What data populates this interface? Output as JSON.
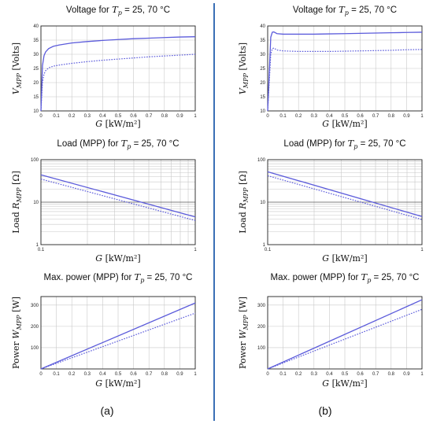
{
  "colors": {
    "series": "#5b5bdb",
    "divider": "#3a6fb5",
    "grid": "#c8c8c8"
  },
  "captions": {
    "left": "(a)",
    "right": "(b)"
  },
  "chart_data": [
    {
      "id": "a-voltage",
      "type": "line",
      "panel": "a",
      "title_pre": "Voltage for ",
      "title_var": "T",
      "title_sub": "p",
      "title_post": " = 25, 70 °C",
      "ylabel_var": "V",
      "ylabel_sub": "MPP",
      "ylabel_post": " [Volts]",
      "xlabel_var": "G",
      "xlabel_post": " [kW/m²]",
      "xscale": "linear",
      "yscale": "linear",
      "xlim": [
        0,
        1
      ],
      "ylim": [
        10,
        40
      ],
      "grid": true,
      "xticks": [
        "0",
        "0.1",
        "0.2",
        "0.3",
        "0.4",
        "0.5",
        "0.6",
        "0.7",
        "0.8",
        "0.9",
        "1"
      ],
      "yticks": [
        "10",
        "15",
        "20",
        "25",
        "30",
        "35",
        "40"
      ],
      "series": [
        {
          "style": "solid",
          "x": [
            0,
            0.01,
            0.02,
            0.03,
            0.05,
            0.08,
            0.12,
            0.2,
            0.3,
            0.4,
            0.5,
            0.6,
            0.7,
            0.8,
            0.9,
            1.0
          ],
          "y": [
            10,
            26,
            29.5,
            30.8,
            32,
            32.8,
            33.3,
            34,
            34.5,
            34.9,
            35.2,
            35.5,
            35.7,
            35.9,
            36.1,
            36.2
          ]
        },
        {
          "style": "dotted",
          "x": [
            0,
            0.01,
            0.02,
            0.03,
            0.05,
            0.08,
            0.12,
            0.2,
            0.3,
            0.4,
            0.5,
            0.6,
            0.7,
            0.8,
            0.9,
            1.0
          ],
          "y": [
            10,
            20,
            23,
            24.2,
            25.2,
            25.8,
            26.2,
            26.8,
            27.4,
            27.9,
            28.3,
            28.7,
            29.1,
            29.4,
            29.7,
            30
          ]
        }
      ]
    },
    {
      "id": "b-voltage",
      "type": "line",
      "panel": "b",
      "title_pre": "Voltage for ",
      "title_var": "T",
      "title_sub": "p",
      "title_post": " = 25, 70 °C",
      "ylabel_var": "V",
      "ylabel_sub": "MPP",
      "ylabel_post": " [Volts]",
      "xlabel_var": "G",
      "xlabel_post": " [kW/m²]",
      "xscale": "linear",
      "yscale": "linear",
      "xlim": [
        0,
        1
      ],
      "ylim": [
        10,
        40
      ],
      "grid": true,
      "xticks": [
        "0",
        "0.1",
        "0.2",
        "0.3",
        "0.4",
        "0.5",
        "0.6",
        "0.7",
        "0.8",
        "0.9",
        "1"
      ],
      "yticks": [
        "10",
        "15",
        "20",
        "25",
        "30",
        "35",
        "40"
      ],
      "series": [
        {
          "style": "solid",
          "x": [
            0,
            0.02,
            0.03,
            0.04,
            0.06,
            0.1,
            0.2,
            0.3,
            0.4,
            0.5,
            0.6,
            0.7,
            0.8,
            0.9,
            1.0
          ],
          "y": [
            10,
            36,
            37.8,
            37.9,
            37.3,
            37.1,
            37.1,
            37.1,
            37.2,
            37.3,
            37.4,
            37.5,
            37.6,
            37.7,
            37.8
          ]
        },
        {
          "style": "dotted",
          "x": [
            0,
            0.02,
            0.03,
            0.04,
            0.06,
            0.1,
            0.2,
            0.3,
            0.4,
            0.5,
            0.6,
            0.7,
            0.8,
            0.9,
            1.0
          ],
          "y": [
            10,
            30,
            32,
            32.2,
            31.5,
            31.2,
            31,
            31,
            31,
            31.1,
            31.2,
            31.3,
            31.4,
            31.6,
            31.7
          ]
        }
      ]
    },
    {
      "id": "a-load",
      "type": "line",
      "panel": "a",
      "title_pre": "Load (MPP) for ",
      "title_var": "T",
      "title_sub": "p",
      "title_post": " = 25, 70 °C",
      "ylabel_pre": "Load ",
      "ylabel_var": "R",
      "ylabel_sub": "MPP",
      "ylabel_post": " [Ω]",
      "xlabel_var": "G",
      "xlabel_post": " [kW/m²]",
      "xscale": "log",
      "yscale": "log",
      "xlim": [
        0.1,
        1
      ],
      "ylim": [
        1,
        100
      ],
      "grid": true,
      "xticks": [
        "0.1",
        "1"
      ],
      "yticks": [
        "1",
        "10",
        "100"
      ],
      "series": [
        {
          "style": "solid",
          "x": [
            0.1,
            1
          ],
          "y": [
            44,
            4.5
          ]
        },
        {
          "style": "dotted",
          "x": [
            0.1,
            1
          ],
          "y": [
            35,
            3.7
          ]
        }
      ]
    },
    {
      "id": "b-load",
      "type": "line",
      "panel": "b",
      "title_pre": "Load (MPP) for ",
      "title_var": "T",
      "title_sub": "p",
      "title_post": " = 25, 70 °C",
      "ylabel_pre": "Load ",
      "ylabel_var": "R",
      "ylabel_sub": "MPP",
      "ylabel_post": " [Ω]",
      "xlabel_var": "G",
      "xlabel_post": " [kW/m²]",
      "xscale": "log",
      "yscale": "log",
      "xlim": [
        0.1,
        1
      ],
      "ylim": [
        1,
        100
      ],
      "grid": true,
      "xticks": [
        "0.1",
        "1"
      ],
      "yticks": [
        "1",
        "10",
        "100"
      ],
      "series": [
        {
          "style": "solid",
          "x": [
            0.1,
            1
          ],
          "y": [
            52,
            4.6
          ]
        },
        {
          "style": "dotted",
          "x": [
            0.1,
            1
          ],
          "y": [
            42,
            3.9
          ]
        }
      ]
    },
    {
      "id": "a-power",
      "type": "line",
      "panel": "a",
      "title_pre": "Max. power (MPP) for ",
      "title_var": "T",
      "title_sub": "p",
      "title_post": " = 25, 70 °C",
      "ylabel_pre": "Power ",
      "ylabel_var": "W",
      "ylabel_sub": "MPP",
      "ylabel_post": " [W]",
      "xlabel_var": "G",
      "xlabel_post": " [kW/m²]",
      "xscale": "linear",
      "yscale": "linear",
      "xlim": [
        0,
        1
      ],
      "ylim": [
        0,
        340
      ],
      "grid": true,
      "xticks": [
        "0",
        "0.1",
        "0.2",
        "0.3",
        "0.4",
        "0.5",
        "0.6",
        "0.7",
        "0.8",
        "0.9",
        "1"
      ],
      "yticks": [
        "100",
        "200",
        "300"
      ],
      "series": [
        {
          "style": "solid",
          "x": [
            0,
            1
          ],
          "y": [
            0,
            310
          ]
        },
        {
          "style": "dotted",
          "x": [
            0,
            1
          ],
          "y": [
            0,
            262
          ]
        }
      ]
    },
    {
      "id": "b-power",
      "type": "line",
      "panel": "b",
      "title_pre": "Max. power (MPP) for ",
      "title_var": "T",
      "title_sub": "p",
      "title_post": " = 25, 70 °C",
      "ylabel_pre": "Power ",
      "ylabel_var": "W",
      "ylabel_sub": "MPP",
      "ylabel_post": " [W]",
      "xlabel_var": "G",
      "xlabel_post": " [kW/m²]",
      "xscale": "linear",
      "yscale": "linear",
      "xlim": [
        0,
        1
      ],
      "ylim": [
        0,
        340
      ],
      "grid": true,
      "xticks": [
        "0",
        "0.1",
        "0.2",
        "0.3",
        "0.4",
        "0.5",
        "0.6",
        "0.7",
        "0.8",
        "0.9",
        "1"
      ],
      "yticks": [
        "100",
        "200",
        "300"
      ],
      "series": [
        {
          "style": "solid",
          "x": [
            0,
            1
          ],
          "y": [
            0,
            325
          ]
        },
        {
          "style": "dotted",
          "x": [
            0,
            1
          ],
          "y": [
            0,
            280
          ]
        }
      ]
    }
  ]
}
